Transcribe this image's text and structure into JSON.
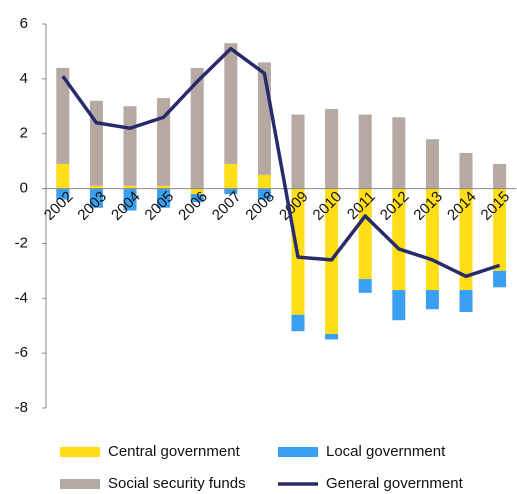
{
  "chart_data": {
    "type": "bar",
    "stacked": true,
    "categories": [
      "2002",
      "2003",
      "2004",
      "2005",
      "2006",
      "2007",
      "2008",
      "2009",
      "2010",
      "2011",
      "2012",
      "2013",
      "2014",
      "2015"
    ],
    "series": [
      {
        "name": "Central government",
        "color": "#ffdd17",
        "values": [
          0.9,
          0.1,
          0.1,
          0.1,
          -0.2,
          0.9,
          0.5,
          -4.6,
          -5.3,
          -3.3,
          -3.7,
          -3.7,
          -3.7,
          -3.0
        ]
      },
      {
        "name": "Local government",
        "color": "#3a9ff0",
        "values": [
          -0.4,
          -0.7,
          -0.8,
          -0.7,
          -0.3,
          -0.2,
          -0.4,
          -0.6,
          -0.2,
          -0.5,
          -1.1,
          -0.7,
          -0.8,
          -0.6
        ]
      },
      {
        "name": "Social security funds",
        "color": "#b6a9a3",
        "values": [
          3.5,
          3.1,
          2.9,
          3.2,
          4.4,
          4.4,
          4.1,
          2.7,
          2.9,
          2.7,
          2.6,
          1.8,
          1.3,
          0.9
        ]
      },
      {
        "name": "General government",
        "type": "line",
        "color": "#272b6b",
        "values": [
          4.1,
          2.4,
          2.2,
          2.6,
          3.9,
          5.1,
          4.2,
          -2.5,
          -2.6,
          -1.0,
          -2.2,
          -2.6,
          -3.2,
          -2.8
        ]
      }
    ],
    "ylim": [
      -8,
      6
    ],
    "yticks": [
      -8,
      -6,
      -4,
      -2,
      0,
      2,
      4,
      6
    ]
  }
}
